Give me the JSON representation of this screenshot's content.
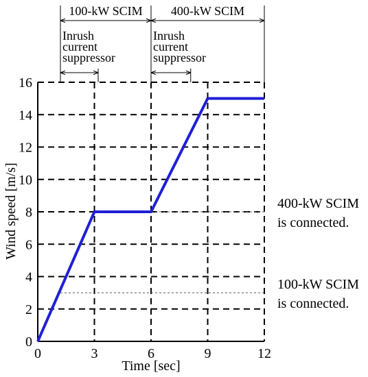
{
  "chart_data": {
    "type": "line",
    "title": "",
    "xlabel": "Time [sec]",
    "ylabel": "Wind speed [m/s]",
    "xlim": [
      0,
      12
    ],
    "ylim": [
      0,
      16
    ],
    "x_ticks": [
      0,
      3,
      6,
      9,
      12
    ],
    "y_ticks": [
      0,
      2,
      4,
      6,
      8,
      10,
      12,
      14,
      16
    ],
    "grid": true,
    "grid_style": "dashed",
    "series": [
      {
        "color": "#1f1fd6",
        "x": [
          0,
          3,
          6,
          9,
          12
        ],
        "y": [
          0,
          8,
          8,
          15,
          15
        ]
      }
    ],
    "reference_lines": [
      {
        "y": 8,
        "x_start": 6,
        "label_line1": "400-kW SCIM",
        "label_line2": "is connected."
      },
      {
        "y": 3,
        "x_start": 1.2,
        "label_line1": "100-kW SCIM",
        "label_line2": "is connected."
      }
    ],
    "period_annotations": [
      {
        "label": "100-kW SCIM",
        "x_start": 1.2,
        "x_end": 6,
        "sub_label": [
          "Inrush",
          "current",
          "suppressor"
        ],
        "sub_x_start": 1.2,
        "sub_x_end": 3.2
      },
      {
        "label": "400-kW SCIM",
        "x_start": 6,
        "x_end": 12,
        "sub_label": [
          "Inrush",
          "current",
          "suppressor"
        ],
        "sub_x_start": 6,
        "sub_x_end": 8.1
      }
    ]
  }
}
